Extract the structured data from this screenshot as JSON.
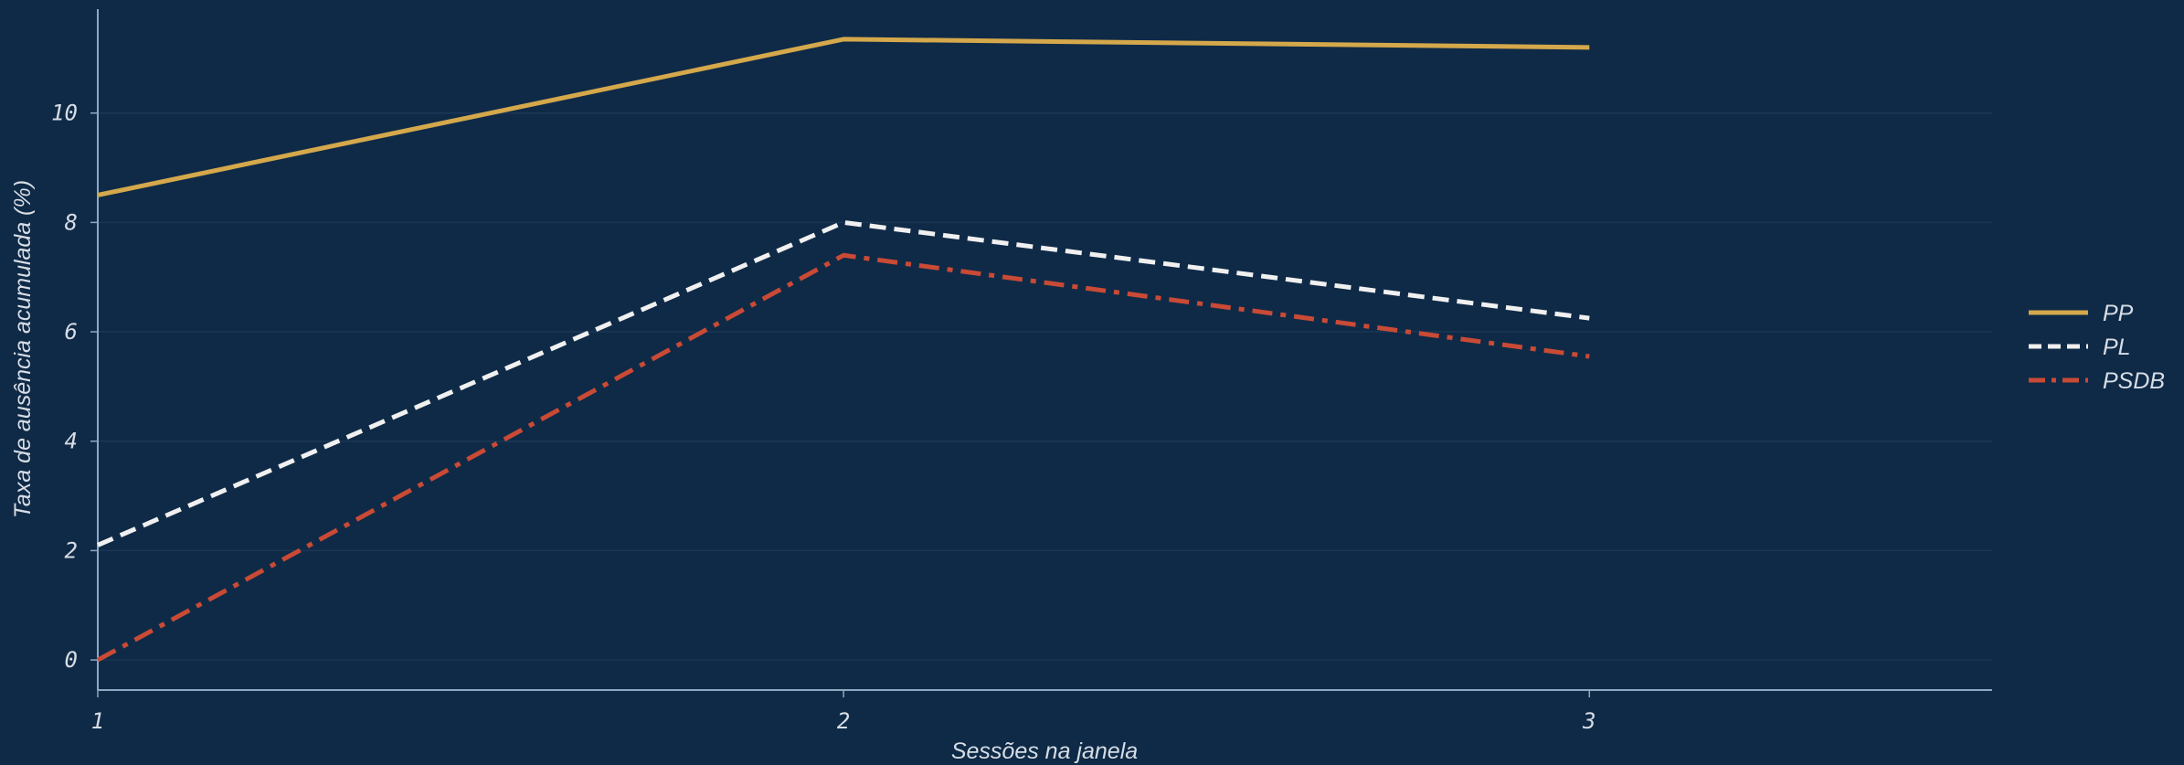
{
  "chart_data": {
    "type": "line",
    "xlabel": "Sessões na janela",
    "ylabel": "Taxa de ausência acumulada (%)",
    "x": [
      1,
      2,
      3
    ],
    "xticks": [
      "1",
      "2",
      "3"
    ],
    "yticks": [
      0,
      2,
      4,
      6,
      8,
      10
    ],
    "xlim": [
      1,
      3.54
    ],
    "ylim": [
      -0.55,
      11.9
    ],
    "grid": "horizontal",
    "legend": "right",
    "series": [
      {
        "name": "PP",
        "values": [
          8.5,
          11.35,
          11.2
        ],
        "color": "#d4a84b",
        "dash": "solid"
      },
      {
        "name": "PL",
        "values": [
          2.1,
          8.0,
          6.25
        ],
        "color": "#f0f0f0",
        "dash": "dashed"
      },
      {
        "name": "PSDB",
        "values": [
          0.0,
          7.4,
          5.55
        ],
        "color": "#c94a35",
        "dash": "dashdot"
      }
    ],
    "colors": {
      "background": "#0f2a47",
      "axis": "#8fa9c2",
      "grid": "#1b3655",
      "text": "#d7dde5"
    }
  }
}
